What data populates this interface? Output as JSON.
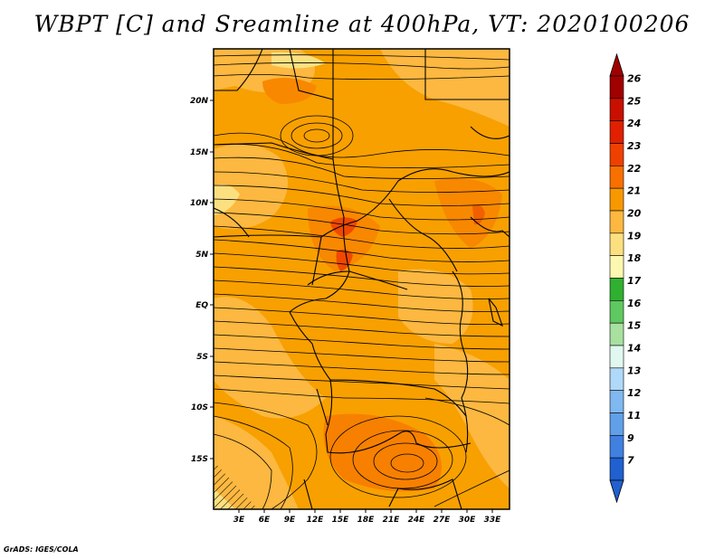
{
  "title": "WBPT [C] and Sreamline at 400hPa, VT: 2020100206",
  "footer": "GrADS: IGES/COLA",
  "map": {
    "variable": "Wet-bulb potential temperature and streamlines",
    "level": "400hPa",
    "lat_labels": [
      "20N",
      "15N",
      "10N",
      "5N",
      "EQ",
      "5S",
      "10S",
      "15S"
    ],
    "lon_labels": [
      "3E",
      "6E",
      "9E",
      "12E",
      "15E",
      "18E",
      "21E",
      "24E",
      "27E",
      "30E",
      "33E"
    ]
  },
  "legend": {
    "labels": [
      "26",
      "25",
      "24",
      "23",
      "22",
      "21",
      "20",
      "19",
      "18",
      "17",
      "16",
      "15",
      "14",
      "13",
      "12",
      "11",
      "9",
      "7"
    ],
    "colors": [
      "#a00000",
      "#c81000",
      "#e02000",
      "#f04000",
      "#f87000",
      "#f89800",
      "#fcb840",
      "#fce080",
      "#fcf8b0",
      "#30b030",
      "#60c860",
      "#a8e0a0",
      "#e0f8f0",
      "#b0d8f8",
      "#80b8f0",
      "#60a0e8",
      "#4080e0",
      "#2060d0"
    ]
  }
}
